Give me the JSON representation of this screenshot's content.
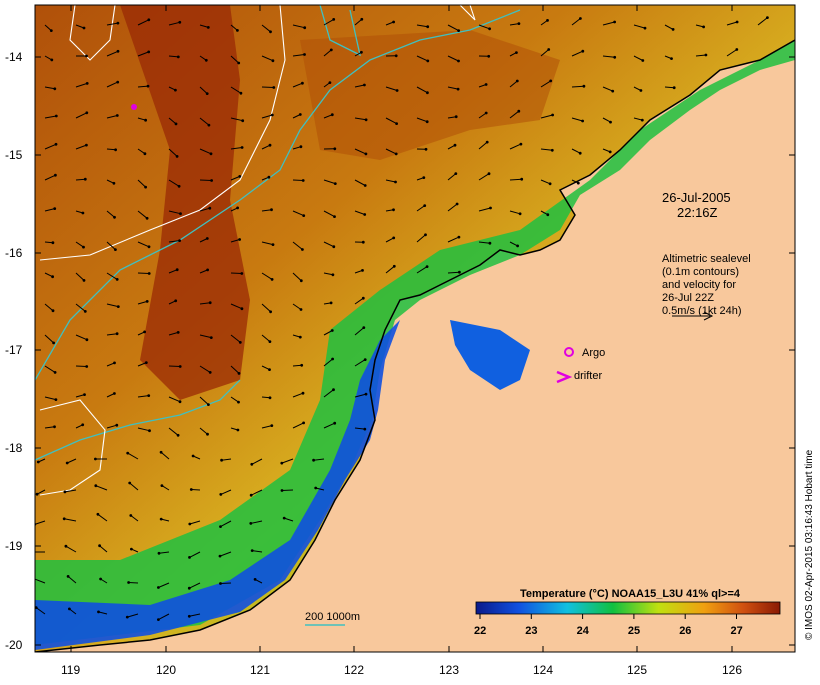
{
  "map": {
    "date_line": "26-Jul-2005",
    "time_line": "22:16Z",
    "legend_lines": [
      "Altimetric sealevel",
      "(0.1m contours)",
      "and velocity for",
      "26-Jul 22Z",
      "0.5m/s (1kt 24h)"
    ],
    "argo_label": "Argo",
    "drifter_label": "drifter",
    "depth_label": "200  1000m",
    "colorbar_title": "Temperature (°C) NOAA15_L3U 41% ql>=4",
    "colorbar_ticks": [
      "22",
      "23",
      "24",
      "25",
      "26",
      "27"
    ],
    "credit": "© IMOS 02-Apr-2015 03:16:43 Hobart time",
    "lat_labels": [
      "-14",
      "-15",
      "-16",
      "-17",
      "-18",
      "-19",
      "-20"
    ],
    "lon_labels": [
      "119",
      "120",
      "121",
      "122",
      "123",
      "124",
      "125",
      "126"
    ],
    "colors": {
      "land": "#f8c89c",
      "sst_cold": "#0a1a8a",
      "sst_warm": "#8a1a04",
      "contour_200_1000": "#40c0c0",
      "sealevel_contour": "#ffffff",
      "argo_marker": "#e000e0",
      "drifter_marker": "#e000e0"
    }
  }
}
